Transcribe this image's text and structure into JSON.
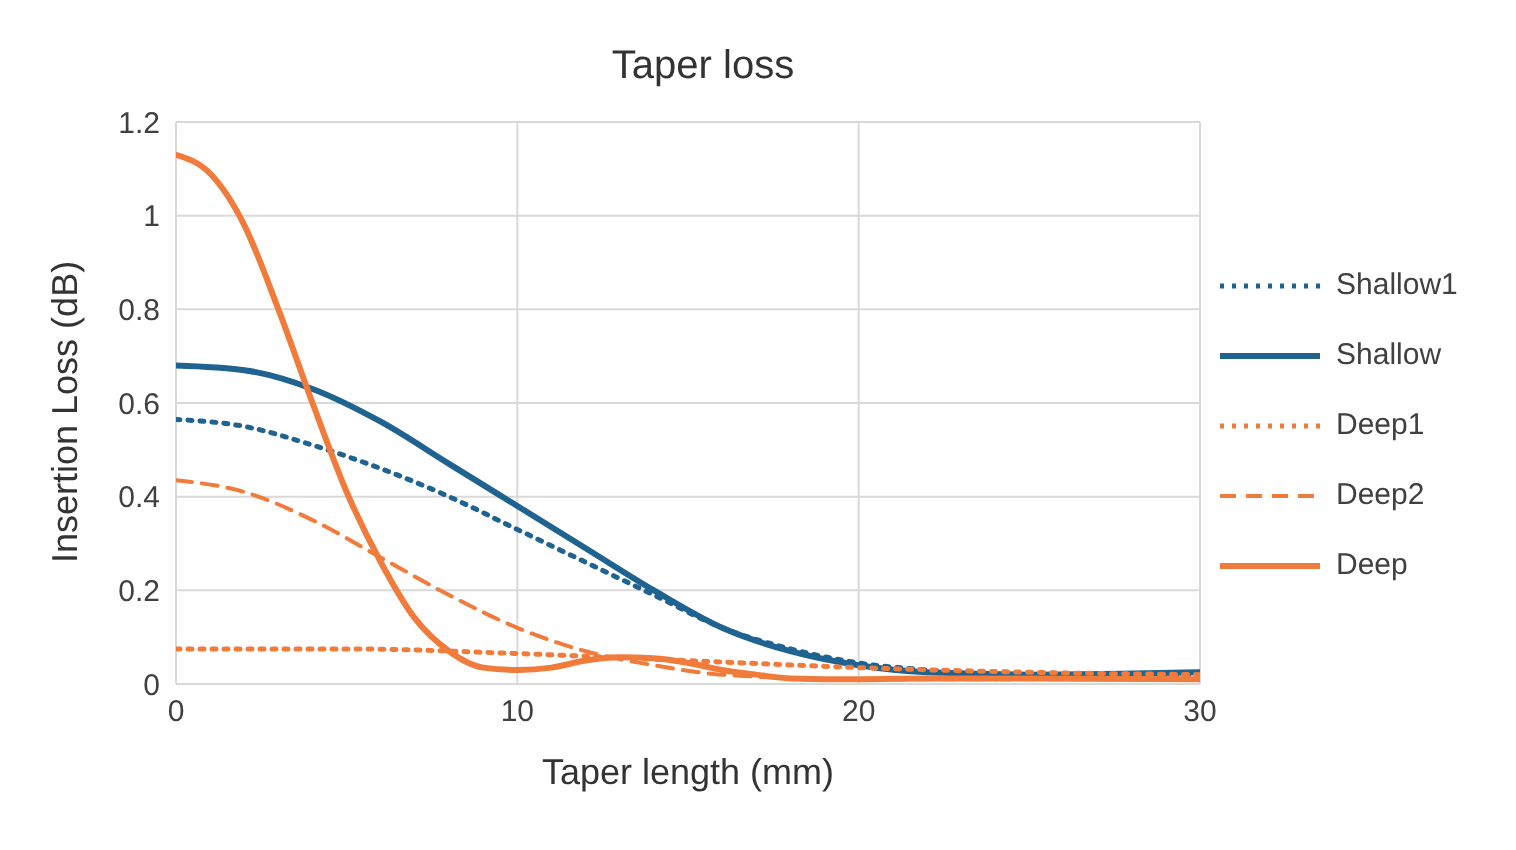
{
  "chart_data": {
    "type": "line",
    "title": "Taper loss",
    "xlabel": "Taper length (mm)",
    "ylabel": "Insertion Loss (dB)",
    "xlim": [
      0,
      30
    ],
    "xticks": [
      0,
      10,
      20,
      30
    ],
    "ylim": [
      0,
      1.2
    ],
    "yticks": [
      0,
      0.2,
      0.4,
      0.6,
      0.8,
      1,
      1.2
    ],
    "grid": true,
    "legend": "right",
    "marker": "none",
    "series": [
      {
        "name": "Shallow1",
        "color": "#1f6391",
        "line_style": "dotted",
        "x": [
          0,
          2,
          4,
          6,
          8,
          10,
          12,
          14,
          16,
          18,
          20,
          22,
          25,
          30
        ],
        "values": [
          0.565,
          0.55,
          0.51,
          0.46,
          0.4,
          0.33,
          0.26,
          0.19,
          0.12,
          0.075,
          0.045,
          0.03,
          0.02,
          0.02
        ]
      },
      {
        "name": "Shallow",
        "color": "#1f6391",
        "line_style": "solid",
        "x": [
          0,
          2,
          4,
          6,
          8,
          10,
          12,
          14,
          16,
          18,
          20,
          22,
          25,
          30
        ],
        "values": [
          0.68,
          0.67,
          0.63,
          0.56,
          0.47,
          0.38,
          0.29,
          0.2,
          0.12,
          0.07,
          0.04,
          0.025,
          0.02,
          0.025
        ]
      },
      {
        "name": "Deep1",
        "color": "#f07b3a",
        "line_style": "dotted",
        "x": [
          0,
          5,
          10,
          15,
          20,
          25,
          30
        ],
        "values": [
          0.075,
          0.075,
          0.065,
          0.05,
          0.035,
          0.025,
          0.02
        ]
      },
      {
        "name": "Deep2",
        "color": "#f07b3a",
        "line_style": "dashed",
        "x": [
          0,
          2,
          4,
          6,
          8,
          10,
          12,
          14,
          16,
          20,
          25,
          30
        ],
        "values": [
          0.435,
          0.41,
          0.35,
          0.27,
          0.19,
          0.12,
          0.07,
          0.04,
          0.02,
          0.01,
          0.01,
          0.01
        ]
      },
      {
        "name": "Deep",
        "color": "#f07b3a",
        "line_style": "solid",
        "x": [
          0,
          1,
          2,
          3,
          4,
          5,
          6,
          7,
          8,
          9,
          10,
          11,
          12,
          13,
          14,
          15,
          16,
          17,
          18,
          20,
          22,
          25,
          30
        ],
        "values": [
          1.13,
          1.09,
          0.98,
          0.8,
          0.6,
          0.41,
          0.26,
          0.14,
          0.07,
          0.035,
          0.03,
          0.035,
          0.05,
          0.057,
          0.055,
          0.045,
          0.03,
          0.02,
          0.012,
          0.01,
          0.012,
          0.012,
          0.01
        ]
      }
    ]
  }
}
